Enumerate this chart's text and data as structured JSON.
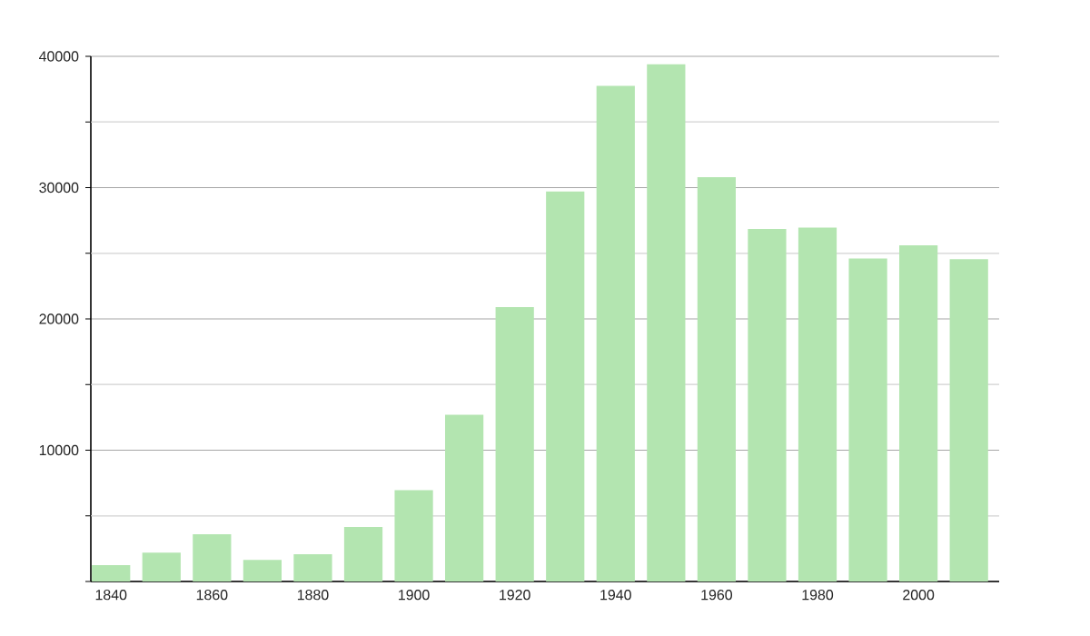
{
  "chart_data": {
    "type": "bar",
    "x": [
      1840,
      1850,
      1860,
      1870,
      1880,
      1890,
      1900,
      1910,
      1920,
      1930,
      1940,
      1950,
      1960,
      1970,
      1980,
      1990,
      2000,
      2010
    ],
    "values": [
      1250,
      2200,
      3600,
      1650,
      2080,
      4150,
      6950,
      12700,
      20900,
      29700,
      37750,
      39400,
      30800,
      26850,
      26950,
      24600,
      25600,
      24550
    ],
    "color": "#b3e5b0",
    "xlim": [
      1836,
      2016
    ],
    "xticks": [
      1840,
      1860,
      1880,
      1900,
      1920,
      1940,
      1960,
      1980,
      2000
    ],
    "ylim": [
      0,
      40000
    ],
    "yticks": [
      {
        "value": 0,
        "label": null
      },
      {
        "value": 5000,
        "label": null
      },
      10000,
      {
        "value": 15000,
        "label": null
      },
      20000,
      {
        "value": 25000,
        "label": null
      },
      30000,
      {
        "value": 35000,
        "label": null
      },
      40000
    ],
    "grid": "y"
  }
}
